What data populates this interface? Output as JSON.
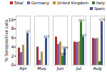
{
  "chart_data": {
    "type": "bar",
    "categories": [
      "Apr",
      "May",
      "Jun",
      "Jul",
      "Aug"
    ],
    "series": [
      {
        "name": "Total",
        "color": "#d42020",
        "values": [
          3.8,
          4.0,
          6.2,
          5.1,
          5.9
        ]
      },
      {
        "name": "Germany",
        "color": "#7b5ea7",
        "values": [
          2.8,
          1.1,
          4.6,
          5.0,
          5.8
        ]
      },
      {
        "name": "United Kingdom",
        "color": "#b8962a",
        "values": [
          4.4,
          2.9,
          5.1,
          5.2,
          5.9
        ]
      },
      {
        "name": "Italy",
        "color": "#3a7a32",
        "values": [
          0.0,
          0.0,
          2.1,
          9.5,
          0.8
        ]
      },
      {
        "name": "Spain",
        "color": "#3050a0",
        "values": [
          7.0,
          5.9,
          3.6,
          6.2,
          9.6
        ]
      }
    ],
    "annotations": [
      {
        "text": "27",
        "category": "Apr",
        "series": "Spain",
        "y": 7.0
      },
      {
        "text": "107",
        "category": "May",
        "series": "Spain",
        "y": 5.9
      },
      {
        "text": "166",
        "category": "Jun",
        "series": "Italy",
        "y": 2.1
      },
      {
        "text": "166",
        "category": "Jun",
        "series": "Spain",
        "y": 3.6
      },
      {
        "text": "267",
        "category": "Jul",
        "series": "Italy",
        "y": 9.5
      },
      {
        "text": "267",
        "category": "Jul",
        "series": "Spain",
        "y": 6.2
      },
      {
        "text": "175",
        "category": "Aug",
        "series": "Spain",
        "y": 9.6
      }
    ],
    "ylabel": "% Seropositive cats",
    "ylim": [
      0,
      10.8
    ],
    "yticks": [
      0,
      2,
      4,
      6,
      8,
      10
    ],
    "grid": false,
    "legend": "upper right"
  }
}
